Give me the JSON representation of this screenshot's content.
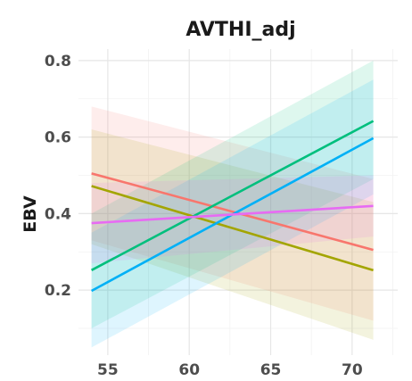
{
  "chart_data": {
    "type": "line",
    "title": "AVTHI_adj",
    "xlabel": "",
    "ylabel": "EBV",
    "xlim": [
      53.2,
      72.8
    ],
    "ylim": [
      0.03,
      0.83
    ],
    "x_ticks": [
      55,
      60,
      65,
      70
    ],
    "y_ticks": [
      0.2,
      0.4,
      0.6,
      0.8
    ],
    "x_tick_labels": [
      "55",
      "60",
      "65",
      "70"
    ],
    "y_tick_labels": [
      "0.2",
      "0.4",
      "0.6",
      "0.8"
    ],
    "grid": true,
    "legend": "none",
    "x": [
      54,
      71.3
    ],
    "series": [
      {
        "color": "#F8766D",
        "values": [
          0.505,
          0.305
        ],
        "lower": [
          0.33,
          0.12
        ],
        "upper": [
          0.68,
          0.49
        ]
      },
      {
        "color": "#A3A500",
        "values": [
          0.472,
          0.252
        ],
        "lower": [
          0.32,
          0.07
        ],
        "upper": [
          0.62,
          0.43
        ]
      },
      {
        "color": "#00BF7D",
        "values": [
          0.252,
          0.642
        ],
        "lower": [
          0.1,
          0.49
        ],
        "upper": [
          0.4,
          0.8
        ]
      },
      {
        "color": "#00B0F6",
        "values": [
          0.198,
          0.597
        ],
        "lower": [
          0.05,
          0.45
        ],
        "upper": [
          0.35,
          0.75
        ]
      },
      {
        "color": "#E76BF3",
        "values": [
          0.375,
          0.42
        ],
        "lower": [
          0.27,
          0.34
        ],
        "upper": [
          0.48,
          0.5
        ]
      }
    ]
  }
}
